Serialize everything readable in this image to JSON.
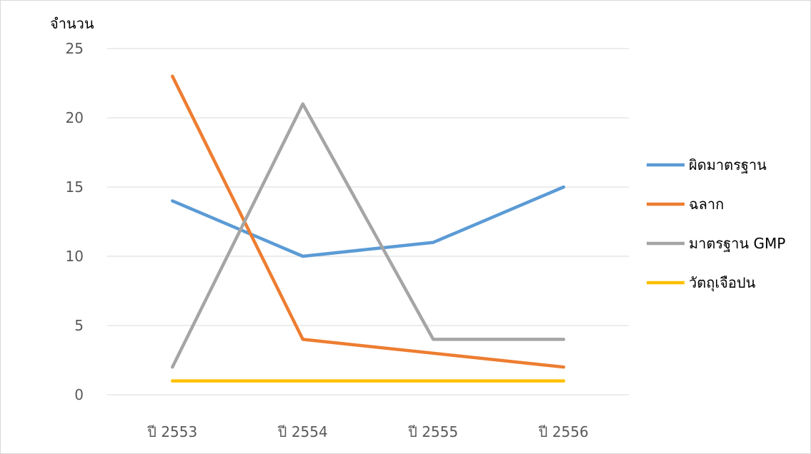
{
  "chart_data": {
    "type": "line",
    "ylabel": "จำนวน",
    "xlabel": "",
    "title": "",
    "categories": [
      "ปี 2553",
      "ปี 2554",
      "ปี 2555",
      "ปี 2556"
    ],
    "ylim": [
      0,
      25
    ],
    "yticks": [
      0,
      5,
      10,
      15,
      20,
      25
    ],
    "grid": true,
    "legend_position": "right",
    "series": [
      {
        "name": "ผิดมาตรฐาน",
        "color": "#5b9bd5",
        "values": [
          14,
          10,
          11,
          15
        ]
      },
      {
        "name": "ฉลาก",
        "color": "#ed7d31",
        "values": [
          23,
          4,
          3,
          2
        ]
      },
      {
        "name": "มาตรฐาน GMP",
        "color": "#a5a5a5",
        "values": [
          2,
          21,
          4,
          4
        ]
      },
      {
        "name": "วัตถุเจือปน",
        "color": "#ffc000",
        "values": [
          1,
          1,
          1,
          1
        ]
      }
    ]
  },
  "colors": {
    "gridline": "#d9d9d9",
    "axis_text": "#595959",
    "frame_border": "#d9d9d9"
  }
}
